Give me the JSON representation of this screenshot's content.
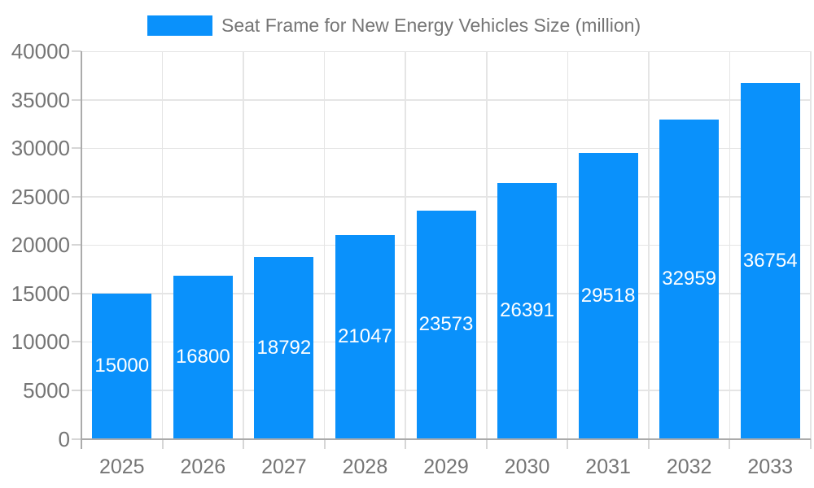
{
  "chart_data": {
    "type": "bar",
    "title": "Seat Frame for New Energy Vehicles Size (million)",
    "legend": {
      "position": "top",
      "entries": [
        "Seat Frame for New Energy Vehicles Size (million)"
      ]
    },
    "categories": [
      "2025",
      "2026",
      "2027",
      "2028",
      "2029",
      "2030",
      "2031",
      "2032",
      "2033"
    ],
    "values": [
      15000,
      16800,
      18792,
      21047,
      23573,
      26391,
      29518,
      32959,
      36754
    ],
    "bar_value_labels": [
      "15000",
      "16800",
      "18792",
      "21047",
      "23573",
      "26391",
      "29518",
      "32959",
      "36754"
    ],
    "xlabel": "",
    "ylabel": "",
    "ylim": [
      0,
      40000
    ],
    "ytick_step": 5000,
    "ytick_labels": [
      "0",
      "5000",
      "10000",
      "15000",
      "20000",
      "25000",
      "30000",
      "35000",
      "40000"
    ],
    "grid": true,
    "colors": {
      "bar": "#0a91fb",
      "bar_label_text": "#ffffff",
      "grid_line": "#e5e5e5",
      "axis_line": "#ababab",
      "tick_mark": "#d6d6d6",
      "tick_text": "#757575",
      "legend_text": "#757575",
      "background": "#ffffff"
    }
  }
}
